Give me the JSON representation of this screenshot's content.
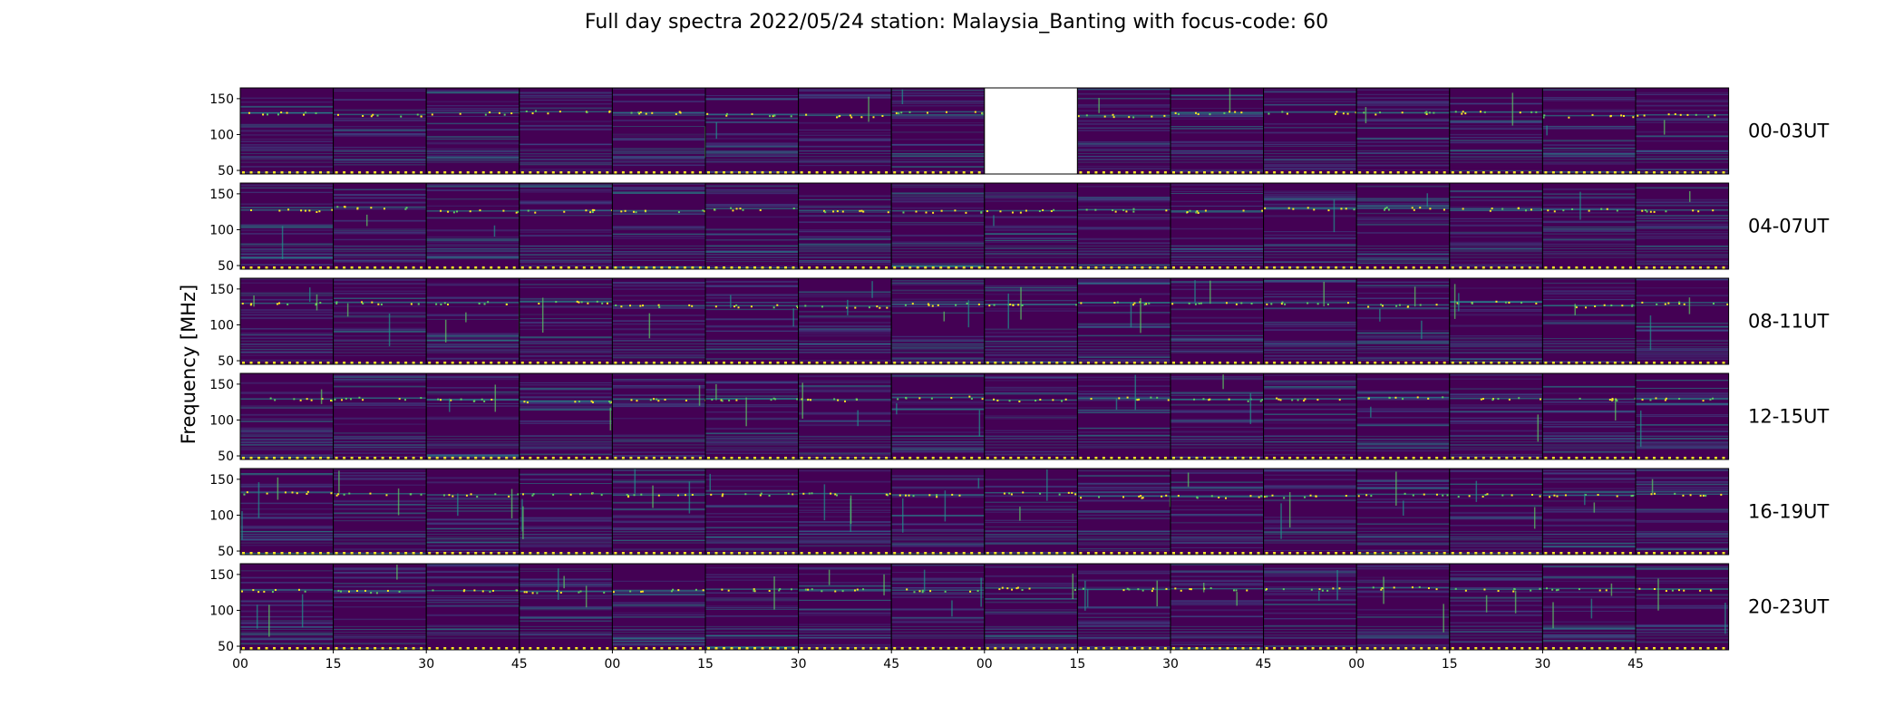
{
  "chart_data": {
    "type": "heatmap",
    "title": "Full day spectra 2022/05/24 station: Malaysia_Banting with focus-code: 60",
    "ylabel": "Frequency [MHz]",
    "ylim": [
      45,
      165
    ],
    "yticks": [
      "50",
      "100",
      "150"
    ],
    "xticks": [
      "00",
      "15",
      "30",
      "45",
      "00",
      "15",
      "30",
      "45",
      "00",
      "15",
      "30",
      "45",
      "00",
      "15",
      "30",
      "45"
    ],
    "rows": [
      "00-03UT",
      "04-07UT",
      "08-11UT",
      "12-15UT",
      "16-19UT",
      "20-23UT"
    ],
    "panels_per_row": 16,
    "panel_minutes": 15,
    "missing_panels": [
      {
        "row": 0,
        "panel": 8
      }
    ],
    "colormap": [
      "#440154",
      "#3b528b",
      "#21918c",
      "#5ec962",
      "#fde725"
    ]
  }
}
